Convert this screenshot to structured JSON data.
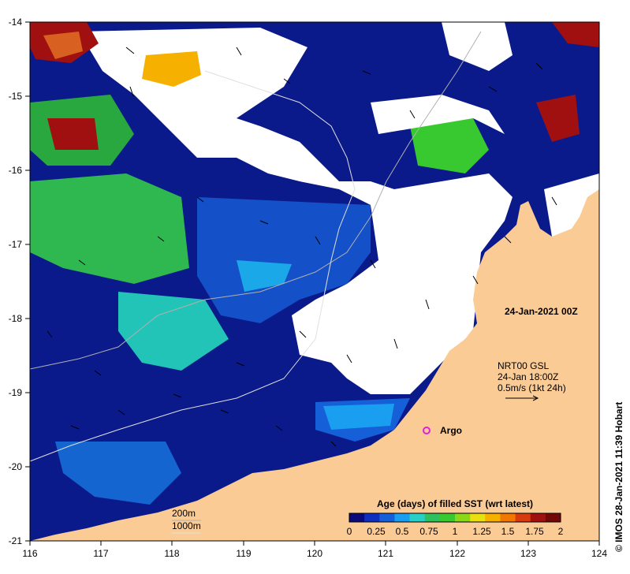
{
  "map": {
    "date_label": "24-Jan-2021 00Z",
    "current_info": {
      "source": "NRT00 GSL",
      "time": "24-Jan 18:00Z",
      "scale": "0.5m/s (1kt 24h)"
    },
    "argo_label": "Argo",
    "isobaths": {
      "first": "200m",
      "second": "1000m"
    },
    "credit": "© IMOS 28-Jan-2021 11:39 Hobart",
    "longitude_ticks": [
      "116",
      "117",
      "118",
      "119",
      "120",
      "121",
      "122",
      "123",
      "124"
    ],
    "latitude_ticks": [
      "-14",
      "-15",
      "-16",
      "-17",
      "-18",
      "-19",
      "-20",
      "-21"
    ],
    "colorbar": {
      "title": "Age (days) of filled SST (wrt latest)",
      "tick_labels": [
        "0",
        "0.25",
        "0.5",
        "0.75",
        "1",
        "1.25",
        "1.5",
        "1.75",
        "2"
      ],
      "colors": [
        "#0a0a7a",
        "#0f2fbf",
        "#1560d8",
        "#1a9ef0",
        "#2ad0c8",
        "#30c060",
        "#38c830",
        "#8ad818",
        "#e8e010",
        "#f5b000",
        "#f07800",
        "#d83a10",
        "#a01010",
        "#700808"
      ]
    }
  }
}
